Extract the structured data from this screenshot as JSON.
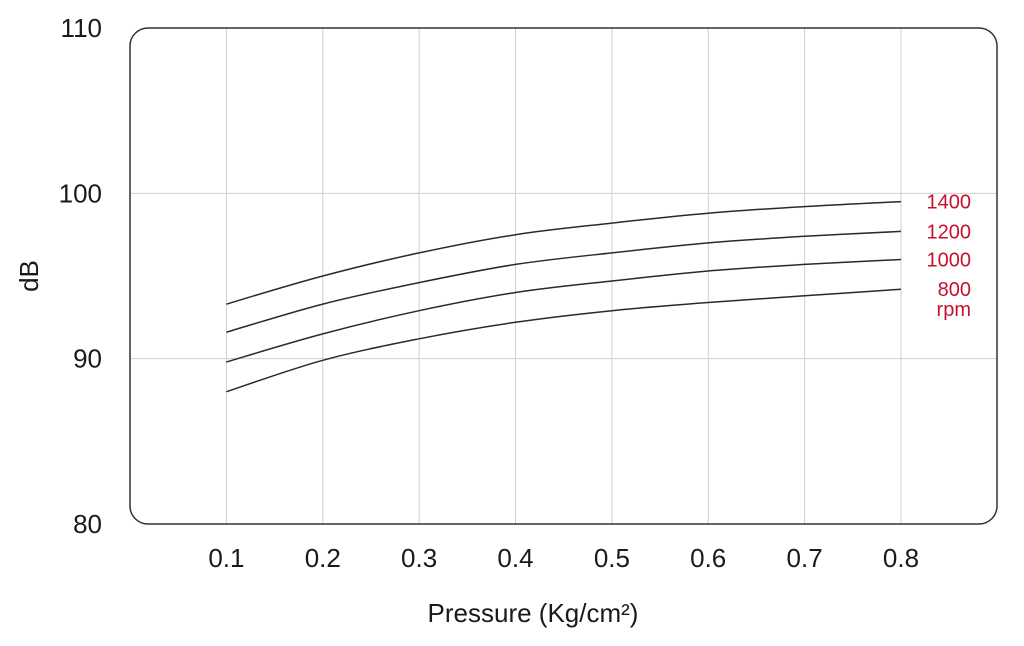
{
  "chart_data": {
    "type": "line",
    "title": "",
    "xlabel": "Pressure (Kg/cm²)",
    "ylabel": "dB",
    "x": [
      0.1,
      0.2,
      0.3,
      0.4,
      0.5,
      0.6,
      0.7,
      0.8
    ],
    "x_tick_labels": [
      "0.1",
      "0.2",
      "0.3",
      "0.4",
      "0.5",
      "0.6",
      "0.7",
      "0.8"
    ],
    "y_tick_values": [
      80,
      90,
      100,
      110
    ],
    "y_tick_labels": [
      "80",
      "90",
      "100",
      "110"
    ],
    "xlim": [
      0.0,
      0.8
    ],
    "ylim": [
      80,
      110
    ],
    "grid": true,
    "legend": "inline labels at right end of lines",
    "unit_label": "rpm",
    "series": [
      {
        "name": "1400",
        "values": [
          93.3,
          95.0,
          96.4,
          97.5,
          98.2,
          98.8,
          99.2,
          99.5
        ]
      },
      {
        "name": "1200",
        "values": [
          91.6,
          93.3,
          94.6,
          95.7,
          96.4,
          97.0,
          97.4,
          97.7
        ]
      },
      {
        "name": "1000",
        "values": [
          89.8,
          91.5,
          92.9,
          94.0,
          94.7,
          95.3,
          95.7,
          96.0
        ]
      },
      {
        "name": "800",
        "values": [
          88.0,
          89.9,
          91.2,
          92.2,
          92.9,
          93.4,
          93.8,
          94.2
        ]
      }
    ],
    "colors": {
      "line": "#2a2a2a",
      "label": "#c8102e",
      "grid": "#cfcfcf",
      "frame": "#333333"
    }
  }
}
